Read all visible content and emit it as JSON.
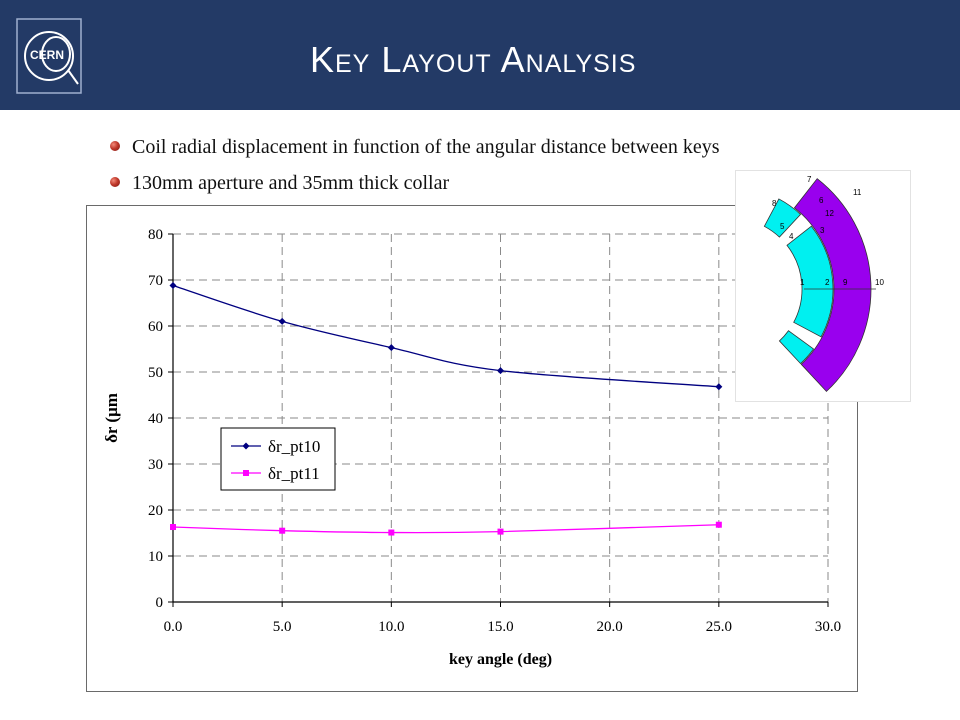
{
  "slide": {
    "title": "Key Layout Analysis",
    "logo_text": "CERN",
    "bullets": [
      "Coil radial displacement in function of the angular distance between keys",
      "130mm aperture and 35mm thick collar"
    ]
  },
  "colors": {
    "header": "#233a66",
    "series_pt10": "#000080",
    "series_pt11": "#ff00ff",
    "coil_inner": "#00f0f0",
    "coil_outer": "#9900ee"
  },
  "chart_data": {
    "type": "line",
    "title": "",
    "xlabel": "key angle (deg)",
    "ylabel": "δr (μm",
    "xlim": [
      0,
      30
    ],
    "ylim": [
      0,
      80
    ],
    "xticks": [
      "0.0",
      "5.0",
      "10.0",
      "15.0",
      "20.0",
      "25.0",
      "30.0"
    ],
    "yticks": [
      "0",
      "10",
      "20",
      "30",
      "40",
      "50",
      "60",
      "70",
      "80"
    ],
    "grid": true,
    "legend_position": "middle-left",
    "series": [
      {
        "name": "δr_pt10",
        "x": [
          0,
          5,
          10,
          15,
          25
        ],
        "y": [
          68.8,
          61.0,
          55.3,
          50.3,
          46.8
        ]
      },
      {
        "name": "δr_pt11",
        "x": [
          0,
          5,
          10,
          15,
          25
        ],
        "y": [
          16.3,
          15.5,
          15.1,
          15.3,
          16.8
        ]
      }
    ]
  },
  "inset": {
    "point_labels": [
      "1",
      "2",
      "3",
      "4",
      "5",
      "6",
      "7",
      "8",
      "9",
      "10",
      "11",
      "12"
    ]
  }
}
